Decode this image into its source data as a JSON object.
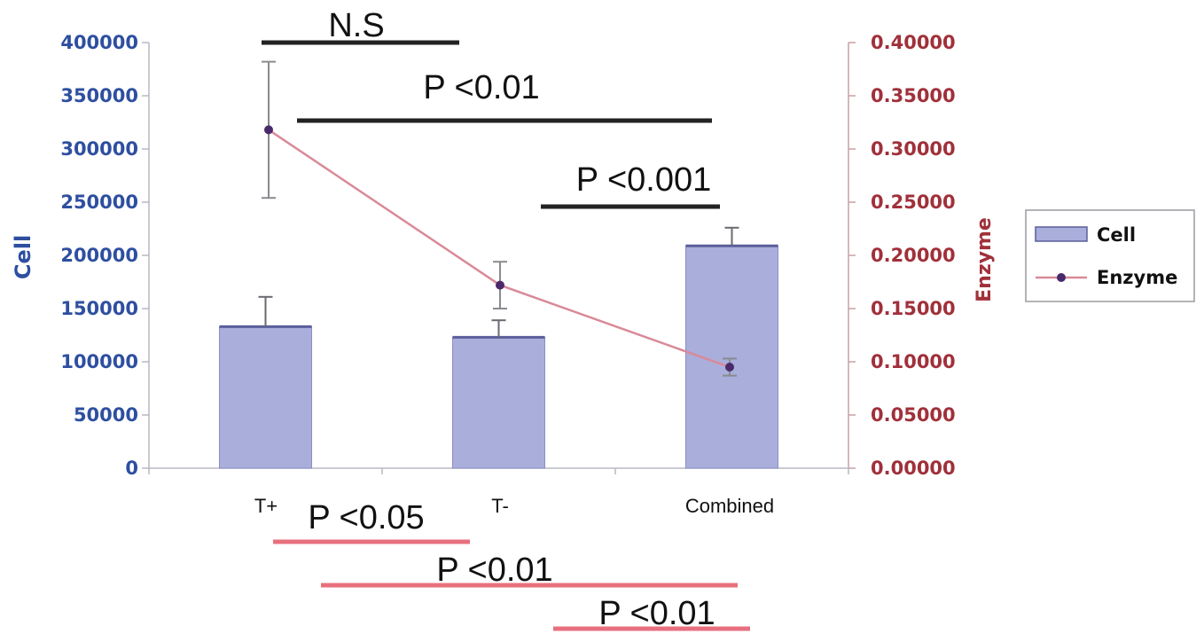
{
  "chart_data": {
    "type": "bar",
    "categories": [
      "T+",
      "T-",
      "Combined"
    ],
    "series": [
      {
        "name": "Cell",
        "type": "bar",
        "axis": "left",
        "values": [
          133000,
          123000,
          209000
        ],
        "error": [
          28000,
          16000,
          17000
        ]
      },
      {
        "name": "Enzyme",
        "type": "line",
        "axis": "right",
        "values": [
          0.318,
          0.172,
          0.095
        ],
        "error": [
          0.064,
          0.022,
          0.008
        ]
      }
    ],
    "ylabel": "Cell",
    "y2label": "Enzyme",
    "ylim": [
      0,
      400000
    ],
    "y2lim": [
      0,
      0.4
    ],
    "yticks": [
      "0",
      "50000",
      "100000",
      "150000",
      "200000",
      "250000",
      "300000",
      "350000",
      "400000"
    ],
    "y2ticks": [
      "0.00000",
      "0.05000",
      "0.10000",
      "0.15000",
      "0.20000",
      "0.25000",
      "0.30000",
      "0.35000",
      "0.40000"
    ],
    "legend": {
      "position": "right",
      "entries": [
        "Cell",
        "Enzyme"
      ]
    },
    "grid": false,
    "colors": {
      "bar_fill": "#a9aedb",
      "bar_stroke": "#5a5e9a",
      "line": "#d98a98",
      "marker": "#4a2a6a",
      "left_axis": "#2e4fa0",
      "right_axis": "#a0303a",
      "sig_top": "#222222",
      "sig_bottom": "#e8707e"
    },
    "annotations": {
      "top": [
        {
          "text": "N.S",
          "from": "T+",
          "to": "T-"
        },
        {
          "text": "P <0.01",
          "from": "T+",
          "to": "Combined"
        },
        {
          "text": "P <0.001",
          "from": "T-",
          "to": "Combined"
        }
      ],
      "bottom": [
        {
          "text": "P <0.05",
          "from": "T+",
          "to": "T-"
        },
        {
          "text": "P <0.01",
          "from": "T+",
          "to": "Combined"
        },
        {
          "text": "P <0.01",
          "from": "T-",
          "to": "Combined"
        }
      ]
    }
  }
}
